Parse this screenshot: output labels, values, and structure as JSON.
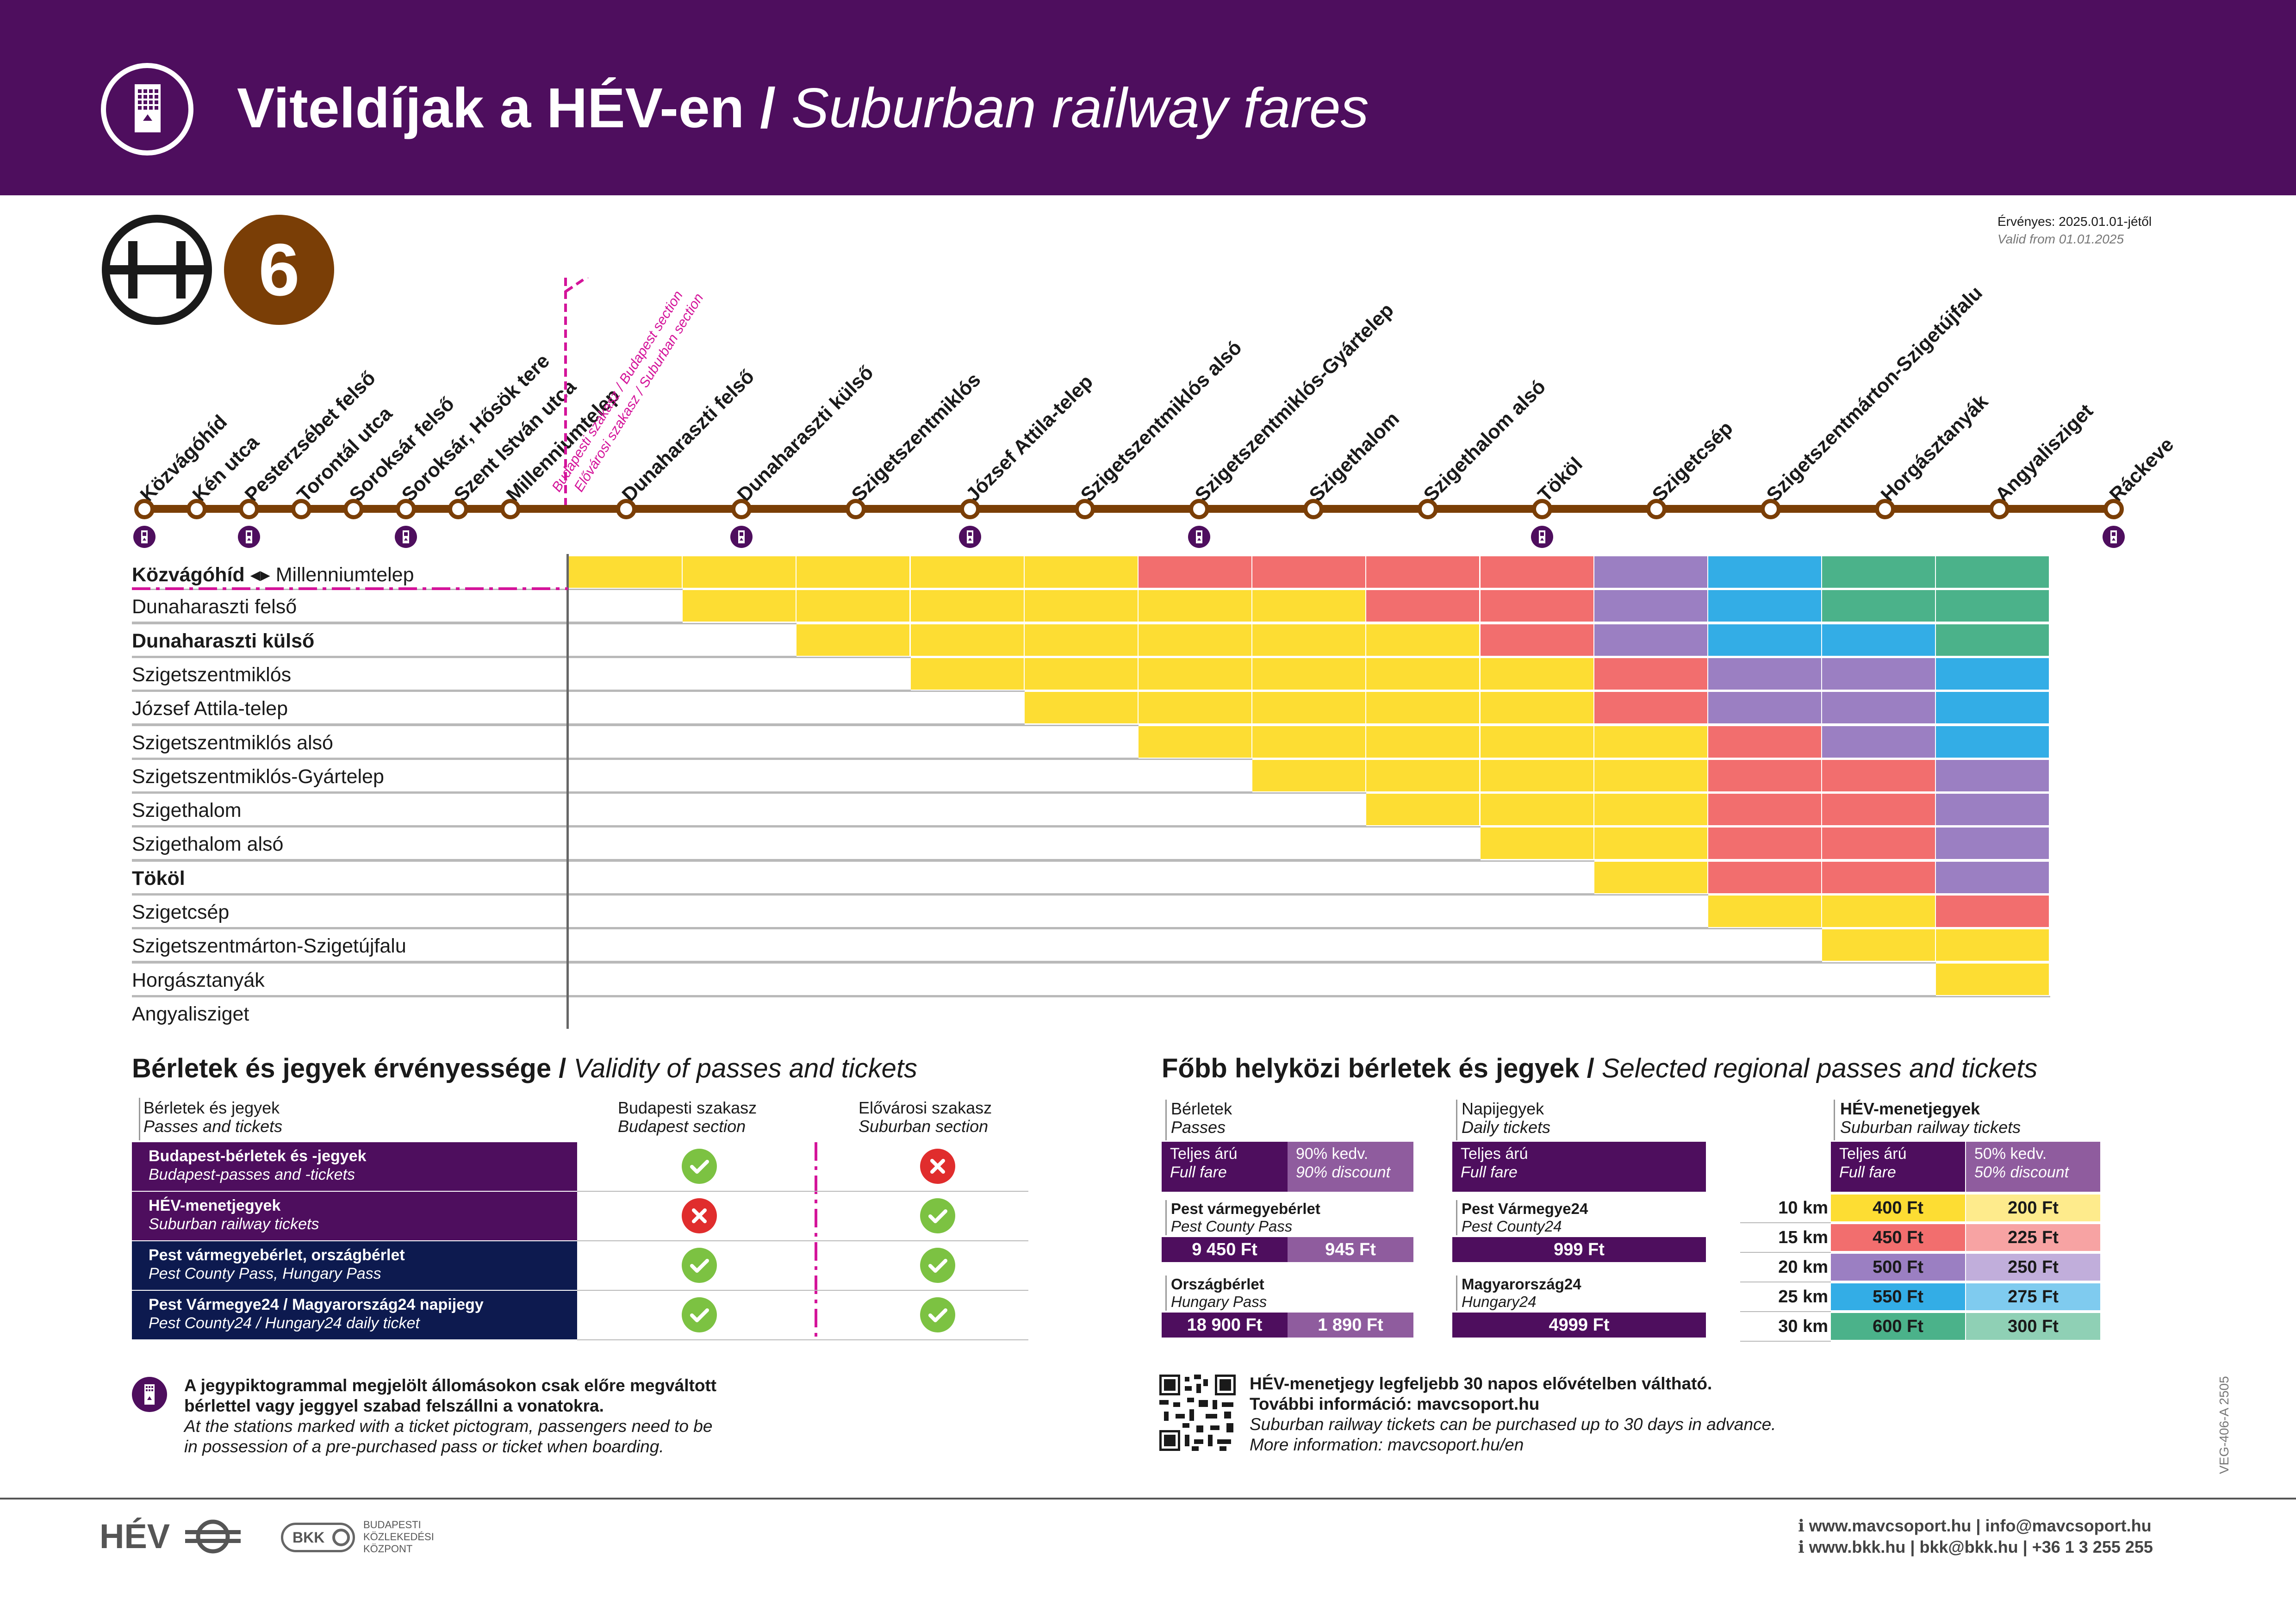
{
  "header": {
    "title_hu": "Viteldíjak a HÉV-en",
    "separator": " / ",
    "title_en": "Suburban railway fares"
  },
  "line": {
    "symbol": "H",
    "number": "6",
    "color": "#7a3e06"
  },
  "validity": {
    "hu": "Érvényes: 2025.01.01-jétől",
    "en": "Valid from 01.01.2025"
  },
  "section_labels": {
    "budapest": "Budapesti szakasz / Budapest section",
    "suburban": "Elővárosi szakasz / Suburban section"
  },
  "stations": [
    {
      "name": "Közvágóhíd",
      "ticket": true
    },
    {
      "name": "Kén utca",
      "ticket": false
    },
    {
      "name": "Pesterzsébet felső",
      "ticket": true
    },
    {
      "name": "Torontál utca",
      "ticket": false
    },
    {
      "name": "Soroksár felső",
      "ticket": false
    },
    {
      "name": "Soroksár, Hősök tere",
      "ticket": true
    },
    {
      "name": "Szent István utca",
      "ticket": false
    },
    {
      "name": "Millenniumtelep",
      "ticket": false
    },
    {
      "name": "Dunaharaszti felső",
      "ticket": false
    },
    {
      "name": "Dunaharaszti külső",
      "ticket": true
    },
    {
      "name": "Szigetszentmiklós",
      "ticket": false
    },
    {
      "name": "József Attila-telep",
      "ticket": true
    },
    {
      "name": "Szigetszentmiklós alsó",
      "ticket": false
    },
    {
      "name": "Szigetszentmiklós-Gyártelep",
      "ticket": true
    },
    {
      "name": "Szigethalom",
      "ticket": false
    },
    {
      "name": "Szigethalom alsó",
      "ticket": false
    },
    {
      "name": "Tököl",
      "ticket": true
    },
    {
      "name": "Szigetcsép",
      "ticket": false
    },
    {
      "name": "Szigetszentmárton-Szigetújfalu",
      "ticket": false
    },
    {
      "name": "Horgásztanyák",
      "ticket": false
    },
    {
      "name": "Angyalisziget",
      "ticket": false
    },
    {
      "name": "Ráckeve",
      "ticket": true
    }
  ],
  "fare_colors": {
    "Y": "#fddd33",
    "R": "#f26e6e",
    "P": "#9b7fc2",
    "B": "#33ade6",
    "G": "#4bb28a"
  },
  "matrix": {
    "first_row_bold": "Közvágóhíd",
    "first_row_rest": "Millenniumtelep",
    "rows": [
      {
        "label": "Dunaharaszti felső",
        "bold": false
      },
      {
        "label": "Dunaharaszti külső",
        "bold": true
      },
      {
        "label": "Szigetszentmiklós",
        "bold": false
      },
      {
        "label": "József Attila-telep",
        "bold": false
      },
      {
        "label": "Szigetszentmiklós alsó",
        "bold": false
      },
      {
        "label": "Szigetszentmiklós-Gyártelep",
        "bold": false
      },
      {
        "label": "Szigethalom",
        "bold": false
      },
      {
        "label": "Szigethalom alsó",
        "bold": false
      },
      {
        "label": "Tököl",
        "bold": true
      },
      {
        "label": "Szigetcsép",
        "bold": false
      },
      {
        "label": "Szigetszentmárton-Szigetújfalu",
        "bold": false
      },
      {
        "label": "Horgásztanyák",
        "bold": false
      },
      {
        "label": "Angyalisziget",
        "bold": false
      }
    ],
    "cells": [
      "YYYYYRRRRPBGG",
      "-YYYYYYRRPBGG",
      "--YYYYYYRPBBG",
      "---YYYYYYRPPB",
      "----YYYYYRPPB",
      "-----YYYYYRPB",
      "------YYYYRRP",
      "-------YYYRRP",
      "--------YYRRP",
      "---------YRRP",
      "----------YYR",
      "-----------YY",
      "------------Y",
      "-------------"
    ]
  },
  "validity_table": {
    "title_hu": "Bérletek és jegyek érvényessége",
    "title_en": "Validity of passes and tickets",
    "head": {
      "col1_hu": "Bérletek és jegyek",
      "col1_en": "Passes and tickets",
      "col2_hu": "Budapesti szakasz",
      "col2_en": "Budapest section",
      "col3_hu": "Elővárosi szakasz",
      "col3_en": "Suburban section"
    },
    "rows": [
      {
        "hu": "Budapest-bérletek és -jegyek",
        "en": "Budapest-passes and -tickets",
        "bg": "#4e0e5e",
        "budapest": "yes",
        "suburban": "no"
      },
      {
        "hu": "HÉV-menetjegyek",
        "en": "Suburban railway tickets",
        "bg": "#4e0e5e",
        "budapest": "no",
        "suburban": "yes"
      },
      {
        "hu": "Pest vármegyebérlet, országbérlet",
        "en": "Pest County Pass, Hungary Pass",
        "bg": "#0d1a4f",
        "budapest": "yes",
        "suburban": "yes"
      },
      {
        "hu": "Pest Vármegye24 / Magyarország24 napijegy",
        "en": "Pest County24 / Hungary24 daily ticket",
        "bg": "#0d1a4f",
        "budapest": "yes",
        "suburban": "yes"
      }
    ]
  },
  "regional": {
    "title_hu": "Főbb helyközi bérletek és jegyek",
    "title_en": "Selected regional passes and tickets",
    "passes": {
      "head_hu": "Bérletek",
      "head_en": "Passes",
      "full_hu": "Teljes árú",
      "full_en": "Full fare",
      "disc_hu": "90% kedv.",
      "disc_en": "90% discount",
      "items": [
        {
          "hu": "Pest vármegyebérlet",
          "en": "Pest County Pass",
          "full": "9 450 Ft",
          "disc": "945 Ft"
        },
        {
          "hu": "Országbérlet",
          "en": "Hungary Pass",
          "full": "18 900 Ft",
          "disc": "1 890 Ft"
        }
      ]
    },
    "daily": {
      "head_hu": "Napijegyek",
      "head_en": "Daily tickets",
      "full_hu": "Teljes árú",
      "full_en": "Full fare",
      "items": [
        {
          "hu": "Pest Vármegye24",
          "en": "Pest County24",
          "price": "999 Ft"
        },
        {
          "hu": "Magyarország24",
          "en": "Hungary24",
          "price": "4999 Ft"
        }
      ]
    },
    "hev": {
      "head_hu": "HÉV-menetjegyek",
      "head_en": "Suburban railway tickets",
      "full_hu": "Teljes árú",
      "full_en": "Full fare",
      "disc_hu": "50% kedv.",
      "disc_en": "50% discount",
      "rows": [
        {
          "km": "10 km",
          "full": "400 Ft",
          "disc": "200 Ft",
          "c1": "#fddd33",
          "c2": "#feeb8c"
        },
        {
          "km": "15 km",
          "full": "450 Ft",
          "disc": "225 Ft",
          "c1": "#f26e6e",
          "c2": "#f7a3a3"
        },
        {
          "km": "20 km",
          "full": "500 Ft",
          "disc": "250 Ft",
          "c1": "#9b7fc2",
          "c2": "#c1aedb"
        },
        {
          "km": "25 km",
          "full": "550 Ft",
          "disc": "275 Ft",
          "c1": "#33ade6",
          "c2": "#7fcbef"
        },
        {
          "km": "30 km",
          "full": "600 Ft",
          "disc": "300 Ft",
          "c1": "#4bb28a",
          "c2": "#8fd0b5"
        }
      ]
    }
  },
  "notes": {
    "left_hu1": "A jegypiktogrammal megjelölt állomásokon csak előre megváltott",
    "left_hu2": "bérlettel vagy jeggyel szabad felszállni a vonatokra.",
    "left_en1": "At the stations marked with a ticket pictogram, passengers need to be",
    "left_en2": "in possession of a pre-purchased pass or ticket when boarding.",
    "right_hu1": "HÉV-menetjegy legfeljebb 30 napos elővételben váltható.",
    "right_hu2": "További információ: mavcsoport.hu",
    "right_en1": "Suburban railway tickets can be purchased up to 30 days in advance.",
    "right_en2": "More information: mavcsoport.hu/en"
  },
  "doc_code": "VEG-406-A 2505",
  "footer": {
    "hev_logo": "HÉV",
    "bkk_logo": "BKK",
    "bkk_line1": "BUDAPESTI",
    "bkk_line2": "KÖZLEKEDÉSI",
    "bkk_line3": "KÖZPONT",
    "contact1": "www.mavcsoport.hu | info@mavcsoport.hu",
    "contact2": "www.bkk.hu | bkk@bkk.hu | +36 1 3 255 255"
  }
}
